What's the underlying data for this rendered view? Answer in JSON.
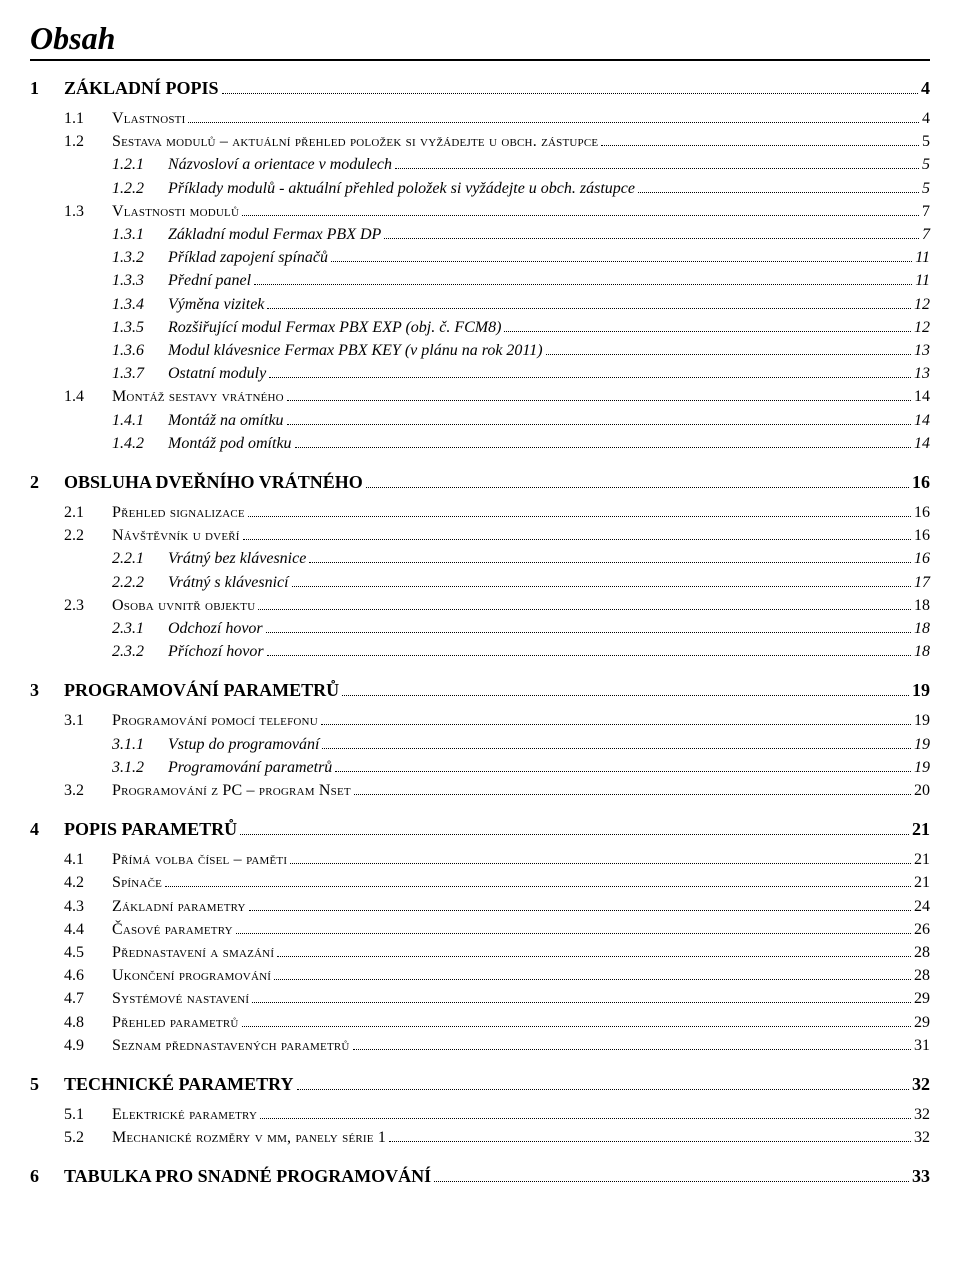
{
  "title": "Obsah",
  "entries": [
    {
      "level": 1,
      "num": "1",
      "label": "ZÁKLADNÍ POPIS",
      "page": "4"
    },
    {
      "level": 2,
      "num": "1.1",
      "label": "Vlastnosti",
      "page": "4"
    },
    {
      "level": 2,
      "num": "1.2",
      "label": "Sestava modulů – aktuální přehled položek si vyžádejte u obch. zástupce",
      "page": "5"
    },
    {
      "level": 3,
      "num": "1.2.1",
      "label": "Názvosloví a orientace v modulech",
      "page": "5"
    },
    {
      "level": 3,
      "num": "1.2.2",
      "label": "Příklady modulů - aktuální přehled položek si vyžádejte u obch. zástupce",
      "page": "5"
    },
    {
      "level": 2,
      "num": "1.3",
      "label": "Vlastnosti modulů",
      "page": "7"
    },
    {
      "level": 3,
      "num": "1.3.1",
      "label": "Základní modul Fermax PBX DP",
      "page": "7"
    },
    {
      "level": 3,
      "num": "1.3.2",
      "label": "Příklad zapojení spínačů",
      "page": "11"
    },
    {
      "level": 3,
      "num": "1.3.3",
      "label": "Přední panel",
      "page": "11"
    },
    {
      "level": 3,
      "num": "1.3.4",
      "label": "Výměna vizitek",
      "page": "12"
    },
    {
      "level": 3,
      "num": "1.3.5",
      "label": "Rozšiřující modul Fermax PBX EXP (obj. č. FCM8)",
      "page": "12"
    },
    {
      "level": 3,
      "num": "1.3.6",
      "label": "Modul klávesnice Fermax PBX KEY (v plánu na rok 2011)",
      "page": "13"
    },
    {
      "level": 3,
      "num": "1.3.7",
      "label": "Ostatní moduly",
      "page": "13"
    },
    {
      "level": 2,
      "num": "1.4",
      "label": "Montáž sestavy vrátného",
      "page": "14"
    },
    {
      "level": 3,
      "num": "1.4.1",
      "label": "Montáž na omítku",
      "page": "14"
    },
    {
      "level": 3,
      "num": "1.4.2",
      "label": "Montáž pod omítku",
      "page": "14"
    },
    {
      "level": 1,
      "num": "2",
      "label": "OBSLUHA DVEŘNÍHO VRÁTNÉHO",
      "page": "16"
    },
    {
      "level": 2,
      "num": "2.1",
      "label": "Přehled signalizace",
      "page": "16"
    },
    {
      "level": 2,
      "num": "2.2",
      "label": "Návštěvník u dveří",
      "page": "16"
    },
    {
      "level": 3,
      "num": "2.2.1",
      "label": "Vrátný bez klávesnice",
      "page": "16"
    },
    {
      "level": 3,
      "num": "2.2.2",
      "label": "Vrátný s klávesnicí",
      "page": "17"
    },
    {
      "level": 2,
      "num": "2.3",
      "label": "Osoba uvnitř objektu",
      "page": "18"
    },
    {
      "level": 3,
      "num": "2.3.1",
      "label": "Odchozí hovor",
      "page": "18"
    },
    {
      "level": 3,
      "num": "2.3.2",
      "label": "Příchozí hovor",
      "page": "18"
    },
    {
      "level": 1,
      "num": "3",
      "label": "PROGRAMOVÁNÍ PARAMETRŮ",
      "page": "19"
    },
    {
      "level": 2,
      "num": "3.1",
      "label": "Programování pomocí telefonu",
      "page": "19"
    },
    {
      "level": 3,
      "num": "3.1.1",
      "label": "Vstup do programování",
      "page": "19"
    },
    {
      "level": 3,
      "num": "3.1.2",
      "label": "Programování parametrů",
      "page": "19"
    },
    {
      "level": 2,
      "num": "3.2",
      "label": "Programování z PC – program Nset",
      "page": "20"
    },
    {
      "level": 1,
      "num": "4",
      "label": "POPIS PARAMETRŮ",
      "page": "21"
    },
    {
      "level": 2,
      "num": "4.1",
      "label": "Přímá volba čísel – paměti",
      "page": "21"
    },
    {
      "level": 2,
      "num": "4.2",
      "label": "Spínače",
      "page": "21"
    },
    {
      "level": 2,
      "num": "4.3",
      "label": "Základní parametry",
      "page": "24"
    },
    {
      "level": 2,
      "num": "4.4",
      "label": "Časové parametry",
      "page": "26"
    },
    {
      "level": 2,
      "num": "4.5",
      "label": "Přednastavení a smazání",
      "page": "28"
    },
    {
      "level": 2,
      "num": "4.6",
      "label": "Ukončení programování",
      "page": "28"
    },
    {
      "level": 2,
      "num": "4.7",
      "label": "Systémové nastavení",
      "page": "29"
    },
    {
      "level": 2,
      "num": "4.8",
      "label": "Přehled parametrů",
      "page": "29"
    },
    {
      "level": 2,
      "num": "4.9",
      "label": "Seznam přednastavených parametrů",
      "page": "31"
    },
    {
      "level": 1,
      "num": "5",
      "label": "TECHNICKÉ PARAMETRY",
      "page": "32"
    },
    {
      "level": 2,
      "num": "5.1",
      "label": "Elektrické parametry",
      "page": "32"
    },
    {
      "level": 2,
      "num": "5.2",
      "label": "Mechanické rozměry v mm, panely série 1",
      "page": "32"
    },
    {
      "level": 1,
      "num": "6",
      "label": "TABULKA PRO SNADNÉ PROGRAMOVÁNÍ",
      "page": "33"
    }
  ]
}
